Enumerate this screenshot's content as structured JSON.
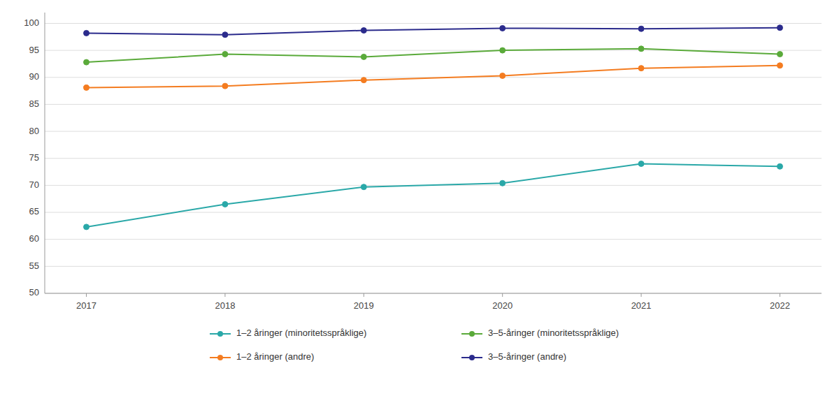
{
  "chart_data": {
    "type": "line",
    "x": [
      2017,
      2018,
      2019,
      2020,
      2021,
      2022
    ],
    "xlim": [
      2016.7,
      2022.3
    ],
    "xticks": [
      2017,
      2018,
      2019,
      2020,
      2021,
      2022
    ],
    "ylim": [
      50,
      102
    ],
    "yticks": [
      50,
      55,
      60,
      65,
      70,
      75,
      80,
      85,
      90,
      95,
      100
    ],
    "grid": true,
    "legend": "bottom",
    "marker": "circle",
    "series": [
      {
        "name": "1–2 åringer (minoritetsspråklige)",
        "color": "#2aa8a8",
        "values": [
          62.3,
          66.5,
          69.7,
          70.4,
          74.0,
          73.5
        ]
      },
      {
        "name": "3–5-åringer (minoritetsspråklige)",
        "color": "#5aaa3a",
        "values": [
          92.8,
          94.3,
          93.8,
          95.0,
          95.3,
          94.3
        ]
      },
      {
        "name": "1–2 åringer (andre)",
        "color": "#f47c20",
        "values": [
          88.1,
          88.4,
          89.5,
          90.3,
          91.7,
          92.2
        ]
      },
      {
        "name": "3–5-åringer (andre)",
        "color": "#2b2b8c",
        "values": [
          98.2,
          97.9,
          98.7,
          99.1,
          99.0,
          99.2
        ]
      }
    ]
  }
}
